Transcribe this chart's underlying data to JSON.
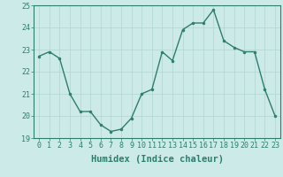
{
  "x": [
    0,
    1,
    2,
    3,
    4,
    5,
    6,
    7,
    8,
    9,
    10,
    11,
    12,
    13,
    14,
    15,
    16,
    17,
    18,
    19,
    20,
    21,
    22,
    23
  ],
  "y": [
    22.7,
    22.9,
    22.6,
    21.0,
    20.2,
    20.2,
    19.6,
    19.3,
    19.4,
    19.9,
    21.0,
    21.2,
    22.9,
    22.5,
    23.9,
    24.2,
    24.2,
    24.8,
    23.4,
    23.1,
    22.9,
    22.9,
    21.2,
    20.0
  ],
  "line_color": "#2e7d6e",
  "marker": "o",
  "marker_size": 2,
  "line_width": 1.0,
  "bg_color": "#cceae8",
  "grid_color": "#b0d4d2",
  "axis_color": "#2e7d6e",
  "tick_color": "#2e7d6e",
  "xlabel": "Humidex (Indice chaleur)",
  "ylim": [
    19,
    25
  ],
  "xlim_min": -0.5,
  "xlim_max": 23.5,
  "yticks": [
    19,
    20,
    21,
    22,
    23,
    24,
    25
  ],
  "xticks": [
    0,
    1,
    2,
    3,
    4,
    5,
    6,
    7,
    8,
    9,
    10,
    11,
    12,
    13,
    14,
    15,
    16,
    17,
    18,
    19,
    20,
    21,
    22,
    23
  ],
  "tick_fontsize": 6,
  "label_fontsize": 7.5
}
